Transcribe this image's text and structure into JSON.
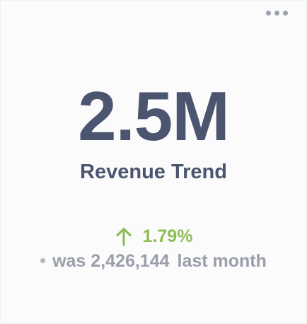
{
  "kpi": {
    "value": "2.5M",
    "title": "Revenue Trend",
    "change": {
      "direction": "up",
      "percent": "1.79%",
      "icon": "arrow-up-icon"
    },
    "comparison": {
      "prefix": "was",
      "previous_value": "2,426,144",
      "period": "last month"
    }
  },
  "toolbar": {
    "menu_icon": "more-horizontal-icon"
  },
  "colors": {
    "value_text": "#4c556f",
    "positive": "#8fbd55",
    "muted_text": "#9a9faa",
    "background": "#fbfbfc"
  }
}
